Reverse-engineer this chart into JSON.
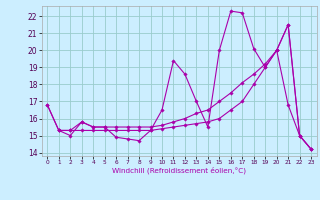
{
  "xlabel": "Windchill (Refroidissement éolien,°C)",
  "xlim": [
    -0.5,
    23.5
  ],
  "ylim": [
    13.8,
    22.6
  ],
  "xticks": [
    0,
    1,
    2,
    3,
    4,
    5,
    6,
    7,
    8,
    9,
    10,
    11,
    12,
    13,
    14,
    15,
    16,
    17,
    18,
    19,
    20,
    21,
    22,
    23
  ],
  "yticks": [
    14,
    15,
    16,
    17,
    18,
    19,
    20,
    21,
    22
  ],
  "background_color": "#cceeff",
  "grid_color": "#99cccc",
  "line_color": "#aa00aa",
  "curve1_x": [
    0,
    1,
    2,
    3,
    4,
    5,
    6,
    7,
    8,
    9,
    10,
    11,
    12,
    13,
    14,
    15,
    16,
    17,
    18,
    19,
    20,
    21,
    22,
    23
  ],
  "curve1_y": [
    16.8,
    15.3,
    15.0,
    15.8,
    15.5,
    15.5,
    14.9,
    14.8,
    14.7,
    15.3,
    16.5,
    19.4,
    18.6,
    17.0,
    15.5,
    20.0,
    22.3,
    22.2,
    20.1,
    19.0,
    20.0,
    16.8,
    15.0,
    14.2
  ],
  "curve2_x": [
    1,
    2,
    3,
    4,
    5,
    6,
    7,
    8,
    9,
    10,
    11,
    12,
    13,
    14,
    15,
    16,
    17,
    18,
    19,
    20,
    21,
    22,
    23
  ],
  "curve2_y": [
    15.3,
    15.3,
    15.3,
    15.3,
    15.3,
    15.3,
    15.3,
    15.3,
    15.3,
    15.4,
    15.5,
    15.6,
    15.7,
    15.8,
    16.0,
    16.5,
    17.0,
    18.0,
    19.0,
    20.0,
    21.5,
    15.0,
    14.2
  ],
  "curve3_x": [
    0,
    1,
    2,
    3,
    4,
    5,
    6,
    7,
    8,
    9,
    10,
    11,
    12,
    13,
    14,
    15,
    16,
    17,
    18,
    19,
    20,
    21,
    22,
    23
  ],
  "curve3_y": [
    16.8,
    15.3,
    15.3,
    15.8,
    15.5,
    15.5,
    15.5,
    15.5,
    15.5,
    15.5,
    15.6,
    15.8,
    16.0,
    16.3,
    16.5,
    17.0,
    17.5,
    18.1,
    18.6,
    19.2,
    20.0,
    21.5,
    15.0,
    14.2
  ]
}
